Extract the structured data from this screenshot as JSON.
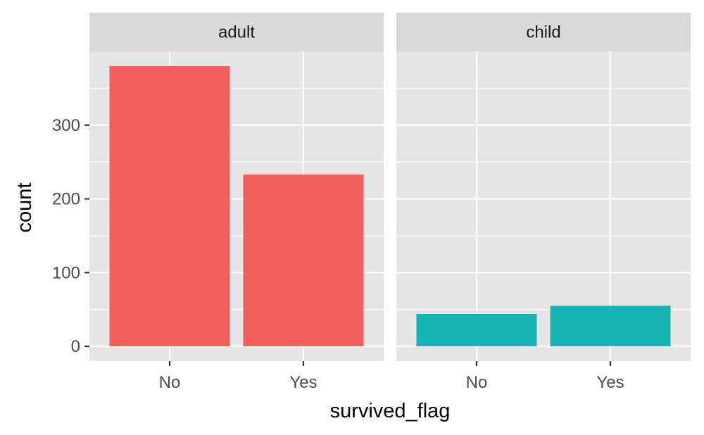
{
  "chart_data": {
    "type": "bar",
    "xlabel": "survived_flag",
    "ylabel": "count",
    "categories": [
      "No",
      "Yes"
    ],
    "ylim": [
      -20,
      400
    ],
    "yticks": [
      0,
      100,
      200,
      300
    ],
    "grid": true,
    "panels": [
      {
        "name": "adult",
        "color": "#f25f5c",
        "values": [
          380,
          233
        ]
      },
      {
        "name": "child",
        "color": "#19b4b8",
        "values": [
          44,
          55
        ]
      }
    ]
  }
}
